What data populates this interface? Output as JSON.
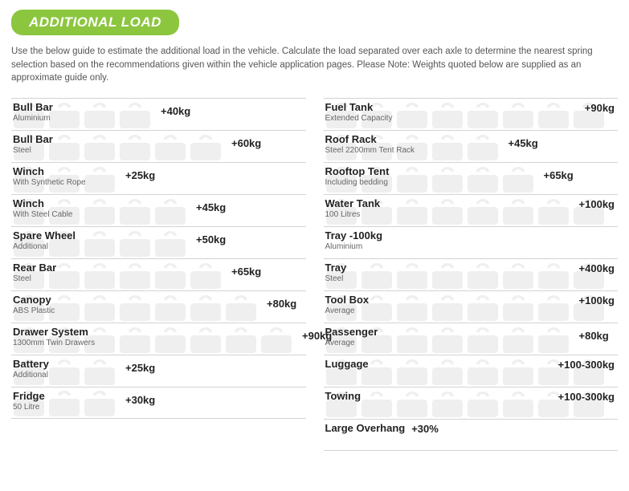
{
  "badge": "ADDITIONAL LOAD",
  "intro": "Use the below guide to estimate the additional load in the vehicle. Calculate the load separated over each axle to determine the nearest spring selection based on the recommendations given within the vehicle application pages. Please Note: Weights quoted below are supplied as an approximate guide only.",
  "colors": {
    "badge_bg": "#8cc63f",
    "badge_text": "#ffffff",
    "weight_fill": "#e2e2e2",
    "border": "#d3d3d3",
    "text": "#222222",
    "subtext": "#666666",
    "body": "#555555"
  },
  "weight_icon": {
    "width": 40,
    "height": 34
  },
  "left": [
    {
      "title": "Bull Bar",
      "sub": "Aluminium",
      "value": "+40kg",
      "weights": 4,
      "value_pos": "after"
    },
    {
      "title": "Bull Bar",
      "sub": "Steel",
      "value": "+60kg",
      "weights": 6,
      "value_pos": "after"
    },
    {
      "title": "Winch",
      "sub": "With Synthetic Rope",
      "value": "+25kg",
      "weights": 3,
      "value_pos": "after"
    },
    {
      "title": "Winch",
      "sub": "With Steel Cable",
      "value": "+45kg",
      "weights": 5,
      "value_pos": "after"
    },
    {
      "title": "Spare Wheel",
      "sub": "Additional",
      "value": "+50kg",
      "weights": 5,
      "value_pos": "after"
    },
    {
      "title": "Rear Bar",
      "sub": "Steel",
      "value": "+65kg",
      "weights": 6,
      "value_pos": "after"
    },
    {
      "title": "Canopy",
      "sub": "ABS Plastic",
      "value": "+80kg",
      "weights": 7,
      "value_pos": "after"
    },
    {
      "title": "Drawer System",
      "sub": "1300mm Twin Drawers",
      "value": "+90kg",
      "weights": 8,
      "value_pos": "after"
    },
    {
      "title": "Battery",
      "sub": "Additional",
      "value": "+25kg",
      "weights": 3,
      "value_pos": "after"
    },
    {
      "title": "Fridge",
      "sub": "50 Litre",
      "value": "+30kg",
      "weights": 3,
      "value_pos": "after"
    }
  ],
  "right": [
    {
      "title": "Fuel Tank",
      "sub": "Extended Capacity",
      "value": "+90kg",
      "weights": 8,
      "value_pos": "right"
    },
    {
      "title": "Roof Rack",
      "sub": "Steel 2200mm Tent Rack",
      "value": "+45kg",
      "weights": 5,
      "value_pos": "after"
    },
    {
      "title": "Rooftop Tent",
      "sub": "Including bedding",
      "value": "+65kg",
      "weights": 6,
      "value_pos": "after"
    },
    {
      "title": "Water Tank",
      "sub": "100 Litres",
      "value": "+100kg",
      "weights": 8,
      "value_pos": "right"
    },
    {
      "title": "Tray -100kg",
      "sub": "Aluminium",
      "value": "",
      "weights": 0,
      "value_pos": "inline"
    },
    {
      "title": "Tray",
      "sub": "Steel",
      "value": "+400kg",
      "weights": 8,
      "value_pos": "right"
    },
    {
      "title": "Tool Box",
      "sub": "Average",
      "value": "+100kg",
      "weights": 8,
      "value_pos": "right"
    },
    {
      "title": "Passenger",
      "sub": "Average",
      "value": "+80kg",
      "weights": 7,
      "value_pos": "after"
    },
    {
      "title": "Luggage",
      "sub": "",
      "value": "+100-300kg",
      "weights": 8,
      "value_pos": "right"
    },
    {
      "title": "Towing",
      "sub": "",
      "value": "+100-300kg",
      "weights": 8,
      "value_pos": "right"
    },
    {
      "title": "Large Overhang",
      "sub": "",
      "value": "+30%",
      "weights": 0,
      "value_pos": "inline"
    }
  ]
}
